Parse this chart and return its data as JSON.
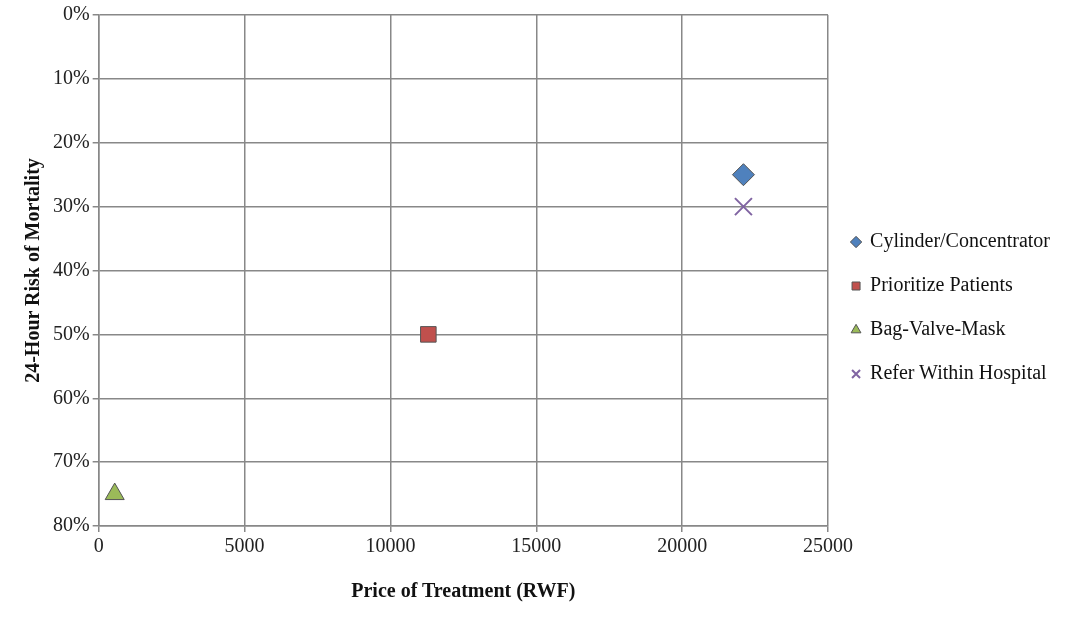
{
  "chart_data": {
    "type": "scatter",
    "xlabel": "Price of Treatment (RWF)",
    "ylabel": "24-Hour Risk of Mortality",
    "xlim": [
      0,
      25000
    ],
    "xticks": [
      0,
      5000,
      10000,
      15000,
      20000,
      25000
    ],
    "ylim": [
      80,
      0
    ],
    "yticks": [
      {
        "value": 0,
        "label": "0%"
      },
      {
        "value": 10,
        "label": "10%"
      },
      {
        "value": 20,
        "label": "20%"
      },
      {
        "value": 30,
        "label": "30%"
      },
      {
        "value": 40,
        "label": "40%"
      },
      {
        "value": 50,
        "label": "50%"
      },
      {
        "value": 60,
        "label": "60%"
      },
      {
        "value": 70,
        "label": "70%"
      },
      {
        "value": 80,
        "label": "80%"
      }
    ],
    "grid": true,
    "legend": "right",
    "series": [
      {
        "name": "Cylinder/Concentrator",
        "color": "#4f81bd",
        "marker": "diamond",
        "x": [
          22100
        ],
        "values": [
          25
        ]
      },
      {
        "name": "Prioritize Patients",
        "color": "#c0504d",
        "marker": "square",
        "x": [
          11300
        ],
        "values": [
          50
        ]
      },
      {
        "name": "Bag-Valve-Mask",
        "color": "#9bbb59",
        "marker": "triangle",
        "x": [
          550
        ],
        "values": [
          75
        ]
      },
      {
        "name": "Refer Within Hospital",
        "color": "#8064a2",
        "marker": "cross",
        "x": [
          22100
        ],
        "values": [
          30
        ]
      }
    ]
  }
}
